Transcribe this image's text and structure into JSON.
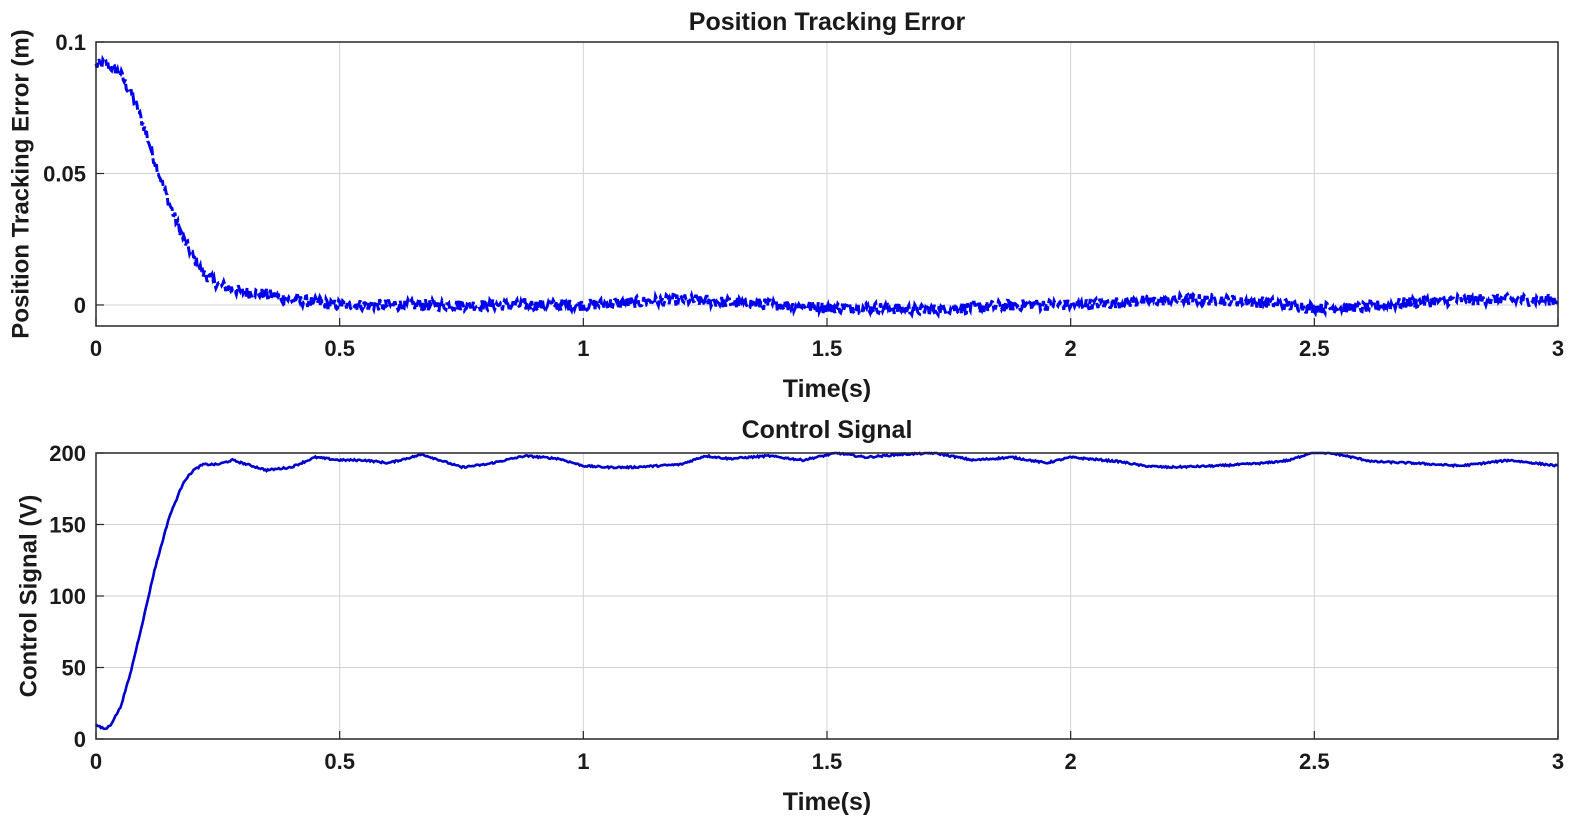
{
  "chart_data": [
    {
      "type": "line",
      "title": "Position Tracking Error",
      "xlabel": "Time(s)",
      "ylabel": "Position Tracking Error (m)",
      "xlim": [
        0,
        3
      ],
      "ylim": [
        -0.008,
        0.1
      ],
      "xticks": [
        0,
        0.5,
        1,
        1.5,
        2,
        2.5,
        3
      ],
      "xtick_labels": [
        "0",
        "0.5",
        "1",
        "1.5",
        "2",
        "2.5",
        "3"
      ],
      "yticks": [
        0,
        0.05,
        0.1
      ],
      "ytick_labels": [
        "0",
        "0.05",
        "0.1"
      ],
      "grid": true,
      "line_style": "dashed",
      "color": "#0000ee",
      "series": [
        {
          "x": [
            0,
            0.02,
            0.05,
            0.08,
            0.1,
            0.12,
            0.14,
            0.16,
            0.18,
            0.2,
            0.22,
            0.25,
            0.28,
            0.3,
            0.35,
            0.4,
            0.45,
            0.5,
            0.6,
            0.7,
            0.8,
            0.9,
            1.0,
            1.1,
            1.2,
            1.3,
            1.4,
            1.5,
            1.6,
            1.7,
            1.8,
            1.9,
            2.0,
            2.1,
            2.2,
            2.3,
            2.4,
            2.5,
            2.6,
            2.7,
            2.8,
            2.9,
            3.0
          ],
          "values": [
            0.091,
            0.092,
            0.088,
            0.077,
            0.067,
            0.055,
            0.044,
            0.034,
            0.025,
            0.018,
            0.012,
            0.008,
            0.006,
            0.005,
            0.004,
            0.002,
            0.001,
            0.0,
            0.0,
            0.0,
            0.0,
            0.0,
            0.0,
            0.001,
            0.002,
            0.001,
            0.0,
            -0.001,
            -0.001,
            -0.002,
            -0.001,
            0.0,
            0.0,
            0.001,
            0.002,
            0.002,
            0.001,
            -0.001,
            -0.001,
            0.001,
            0.002,
            0.002,
            0.002
          ]
        }
      ]
    },
    {
      "type": "line",
      "title": "Control Signal",
      "xlabel": "Time(s)",
      "ylabel": "Control Signal (V)",
      "xlim": [
        0,
        3
      ],
      "ylim": [
        0,
        200
      ],
      "xticks": [
        0,
        0.5,
        1,
        1.5,
        2,
        2.5,
        3
      ],
      "xtick_labels": [
        "0",
        "0.5",
        "1",
        "1.5",
        "2",
        "2.5",
        "3"
      ],
      "yticks": [
        0,
        50,
        100,
        150,
        200
      ],
      "ytick_labels": [
        "0",
        "50",
        "100",
        "150",
        "200"
      ],
      "grid": true,
      "line_style": "solid",
      "color": "#0000cc",
      "series": [
        {
          "x": [
            0,
            0.01,
            0.02,
            0.03,
            0.05,
            0.07,
            0.1,
            0.12,
            0.15,
            0.18,
            0.2,
            0.22,
            0.25,
            0.28,
            0.3,
            0.35,
            0.4,
            0.45,
            0.5,
            0.55,
            0.6,
            0.67,
            0.75,
            0.8,
            0.88,
            0.95,
            1.0,
            1.05,
            1.1,
            1.2,
            1.25,
            1.3,
            1.38,
            1.45,
            1.52,
            1.58,
            1.65,
            1.72,
            1.8,
            1.88,
            1.95,
            2.0,
            2.1,
            2.15,
            2.2,
            2.3,
            2.4,
            2.45,
            2.5,
            2.55,
            2.62,
            2.7,
            2.8,
            2.9,
            3.0
          ],
          "values": [
            10,
            8,
            7,
            10,
            22,
            45,
            88,
            118,
            155,
            180,
            188,
            192,
            192,
            195,
            193,
            188,
            190,
            197,
            195,
            195,
            193,
            199,
            190,
            192,
            198,
            196,
            191,
            190,
            190,
            192,
            198,
            196,
            198,
            195,
            200,
            197,
            199,
            200,
            195,
            197,
            193,
            197,
            194,
            191,
            190,
            191,
            193,
            195,
            201,
            199,
            194,
            193,
            191,
            195,
            191
          ]
        }
      ]
    }
  ]
}
